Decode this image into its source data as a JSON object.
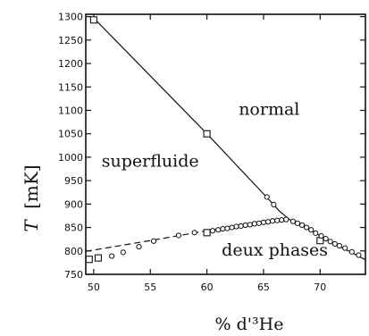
{
  "chart_data": {
    "type": "line",
    "xlabel": "% d'³He",
    "ylabel_symbol": "T",
    "ylabel_unit": "[mK]",
    "xlim": [
      49.3,
      74
    ],
    "ylim": [
      750,
      1305
    ],
    "x_ticks": [
      {
        "value": 50,
        "label": "50"
      },
      {
        "value": 55,
        "label": "55"
      },
      {
        "value": 60,
        "label": "60"
      },
      {
        "value": 65,
        "label": "65"
      },
      {
        "value": 70,
        "label": "70"
      }
    ],
    "y_ticks": [
      {
        "value": 750,
        "label": "750"
      },
      {
        "value": 800,
        "label": "800"
      },
      {
        "value": 850,
        "label": "850"
      },
      {
        "value": 900,
        "label": "900"
      },
      {
        "value": 950,
        "label": "950"
      },
      {
        "value": 1000,
        "label": "1000"
      },
      {
        "value": 1050,
        "label": "1050"
      },
      {
        "value": 1100,
        "label": "1100"
      },
      {
        "value": 1150,
        "label": "1150"
      },
      {
        "value": 1200,
        "label": "1200"
      },
      {
        "value": 1250,
        "label": "1250"
      },
      {
        "value": 1300,
        "label": "1300"
      }
    ],
    "regions": [
      {
        "label": "normal",
        "x": 65.5,
        "y": 1090
      },
      {
        "label": "superfluide",
        "x": 55.0,
        "y": 980
      },
      {
        "label": "deux phases",
        "x": 66.0,
        "y": 790
      }
    ],
    "series": [
      {
        "style": "solid",
        "x": [
          50.0,
          60.0,
          65.3,
          66.4,
          67.3
        ],
        "y": [
          1297,
          1050,
          914,
          885,
          867
        ]
      },
      {
        "style": "dashed",
        "x": [
          49.3,
          55.0,
          60.0,
          64.0,
          66.0,
          67.3
        ],
        "y": [
          799,
          822,
          843,
          857,
          865,
          867
        ]
      },
      {
        "style": "solid",
        "x": [
          67.3,
          69.0,
          71.0,
          72.5,
          74.0
        ],
        "y": [
          867,
          846,
          818,
          800,
          781
        ]
      }
    ],
    "squares": [
      {
        "x": 50.0,
        "y": 1293
      },
      {
        "x": 60.0,
        "y": 1050
      },
      {
        "x": 60.0,
        "y": 839
      },
      {
        "x": 70.0,
        "y": 822
      },
      {
        "x": 49.6,
        "y": 782
      },
      {
        "x": 50.4,
        "y": 785
      }
    ],
    "circles": [
      {
        "x": 65.3,
        "y": 915
      },
      {
        "x": 65.9,
        "y": 899
      },
      {
        "x": 51.6,
        "y": 789
      },
      {
        "x": 52.6,
        "y": 797
      },
      {
        "x": 54.0,
        "y": 809
      },
      {
        "x": 55.3,
        "y": 821
      },
      {
        "x": 57.5,
        "y": 833
      },
      {
        "x": 58.9,
        "y": 839
      },
      {
        "x": 60.5,
        "y": 843
      },
      {
        "x": 61.0,
        "y": 845
      },
      {
        "x": 61.4,
        "y": 847
      },
      {
        "x": 61.8,
        "y": 848
      },
      {
        "x": 62.2,
        "y": 850
      },
      {
        "x": 62.6,
        "y": 852
      },
      {
        "x": 63.0,
        "y": 853
      },
      {
        "x": 63.4,
        "y": 855
      },
      {
        "x": 63.8,
        "y": 856
      },
      {
        "x": 64.2,
        "y": 858
      },
      {
        "x": 64.6,
        "y": 859
      },
      {
        "x": 65.0,
        "y": 861
      },
      {
        "x": 65.4,
        "y": 862
      },
      {
        "x": 65.8,
        "y": 864
      },
      {
        "x": 66.2,
        "y": 865
      },
      {
        "x": 66.6,
        "y": 866
      },
      {
        "x": 67.0,
        "y": 867
      },
      {
        "x": 67.6,
        "y": 863
      },
      {
        "x": 68.0,
        "y": 859
      },
      {
        "x": 68.4,
        "y": 855
      },
      {
        "x": 68.8,
        "y": 850
      },
      {
        "x": 69.2,
        "y": 845
      },
      {
        "x": 69.6,
        "y": 838
      },
      {
        "x": 70.1,
        "y": 832
      },
      {
        "x": 70.5,
        "y": 826
      },
      {
        "x": 70.9,
        "y": 820
      },
      {
        "x": 71.3,
        "y": 815
      },
      {
        "x": 71.7,
        "y": 811
      },
      {
        "x": 72.2,
        "y": 806
      },
      {
        "x": 72.8,
        "y": 798
      },
      {
        "x": 73.4,
        "y": 791
      }
    ]
  }
}
